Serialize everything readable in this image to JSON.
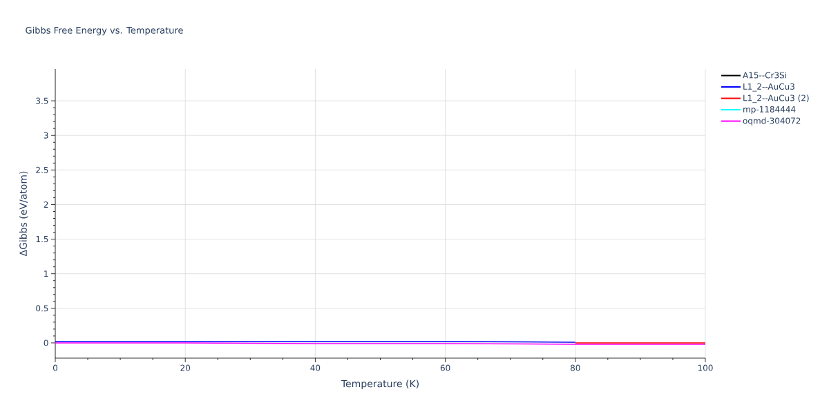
{
  "chart_data": {
    "type": "line",
    "title": "Gibbs Free Energy vs. Temperature",
    "xlabel": "Temperature (K)",
    "ylabel": "ΔGibbs (eV/atom)",
    "x": [
      0,
      20,
      40,
      60,
      80,
      100
    ],
    "series": [
      {
        "name": "A15--Cr3Si",
        "color": "#000000",
        "values": [
          null,
          null,
          null,
          null,
          null,
          null
        ]
      },
      {
        "name": "L1_2--AuCu3",
        "color": "#0000ff",
        "values": [
          0.02,
          0.02,
          0.02,
          0.02,
          0.01,
          null
        ]
      },
      {
        "name": "L1_2--AuCu3 (2)",
        "color": "#ff0000",
        "values": [
          null,
          null,
          null,
          null,
          0.0,
          0.0
        ]
      },
      {
        "name": "mp-1184444",
        "color": "#00ffff",
        "values": [
          null,
          null,
          null,
          null,
          null,
          null
        ]
      },
      {
        "name": "oqmd-304072",
        "color": "#ff00ff",
        "values": [
          0.0,
          0.0,
          -0.01,
          -0.01,
          -0.02,
          -0.02
        ]
      }
    ],
    "xlim": [
      0,
      100
    ],
    "xticks": [
      0,
      20,
      40,
      60,
      80,
      100
    ],
    "ylim": [
      -0.22,
      3.96
    ],
    "yticks": [
      0,
      0.5,
      1,
      1.5,
      2,
      2.5,
      3,
      3.5
    ],
    "grid": true,
    "legend": "top right",
    "marker": "none",
    "line_style": "solid"
  }
}
